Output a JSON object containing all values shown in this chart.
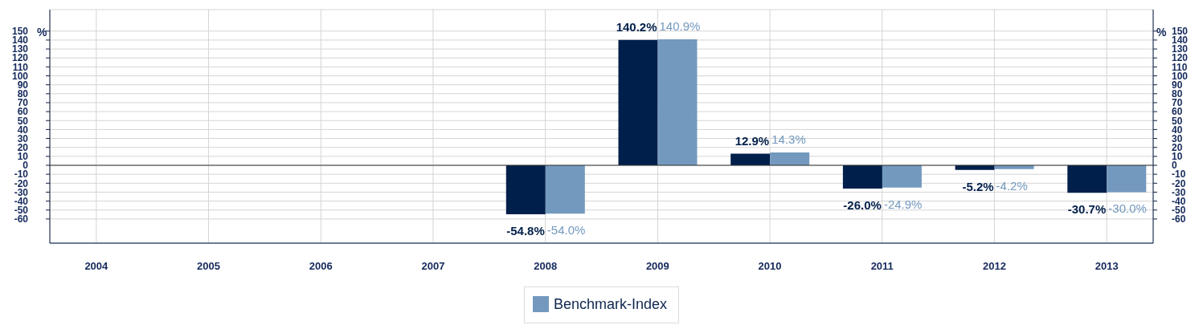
{
  "chart_data": {
    "type": "bar",
    "ylabel": "%",
    "y2label": "%",
    "categories": [
      "2004",
      "2005",
      "2006",
      "2007",
      "2008",
      "2009",
      "2010",
      "2011",
      "2012",
      "2013"
    ],
    "series": [
      {
        "color": "#001f4a",
        "values": [
          null,
          null,
          null,
          null,
          -54.8,
          140.2,
          12.9,
          -26.0,
          -5.2,
          -30.7
        ],
        "value_labels": [
          null,
          null,
          null,
          null,
          "-54.8%",
          "140.2%",
          "12.9%",
          "-26.0%",
          "-5.2%",
          "-30.7%"
        ]
      },
      {
        "name": "Benchmark-Index",
        "color": "#7399be",
        "values": [
          null,
          null,
          null,
          null,
          -54.0,
          140.9,
          14.3,
          -24.9,
          -4.2,
          -30.0
        ],
        "value_labels": [
          null,
          null,
          null,
          null,
          "-54.0%",
          "140.9%",
          "14.3%",
          "-24.9%",
          "-4.2%",
          "-30.0%"
        ]
      }
    ],
    "ylim": [
      -87,
      174
    ],
    "yticks": [
      -60,
      -50,
      -40,
      -30,
      -20,
      -10,
      0,
      10,
      20,
      30,
      40,
      50,
      60,
      70,
      80,
      90,
      100,
      110,
      120,
      130,
      140,
      150
    ],
    "y2lim": [
      -87,
      174
    ],
    "y2ticks": [
      -60,
      -50,
      -40,
      -30,
      -20,
      -10,
      0,
      10,
      20,
      30,
      40,
      50,
      60,
      70,
      80,
      90,
      100,
      110,
      120,
      130,
      140,
      150
    ],
    "grid": true,
    "legend": "bottom",
    "ref_lines": [
      {
        "axis": "y",
        "value": 0,
        "color": "#333333"
      }
    ]
  }
}
